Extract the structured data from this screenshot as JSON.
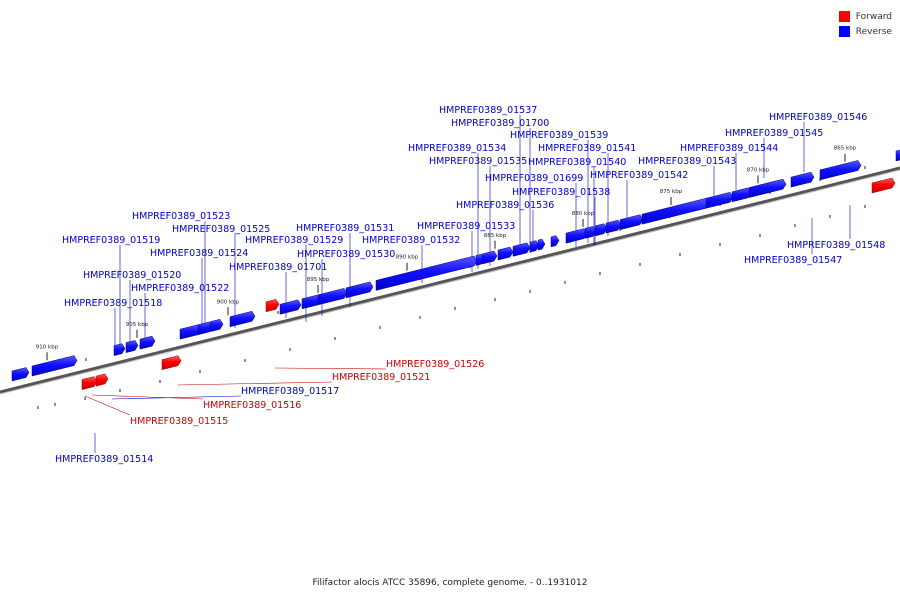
{
  "legend": {
    "forward": {
      "label": "Forward",
      "color": "#ff0000"
    },
    "reverse": {
      "label": "Reverse",
      "color": "#0000ff"
    }
  },
  "caption": "Filifactor alocis ATCC 35896, complete genome. - 0..1931012",
  "axis": {
    "ticks": [
      {
        "label": "910 kbp"
      },
      {
        "label": "905 kbp"
      },
      {
        "label": "900 kbp"
      },
      {
        "label": "895 kbp"
      },
      {
        "label": "890 kbp"
      },
      {
        "label": "885 kbp"
      },
      {
        "label": "880 kbp"
      },
      {
        "label": "875 kbp"
      },
      {
        "label": "870 kbp"
      },
      {
        "label": "865 kbp"
      }
    ]
  },
  "genes": [
    {
      "label": "HMPREF0389_01514",
      "strand": "reverse"
    },
    {
      "label": "HMPREF0389_01515",
      "strand": "forward"
    },
    {
      "label": "HMPREF0389_01516",
      "strand": "forward"
    },
    {
      "label": "HMPREF0389_01517",
      "strand": "reverse"
    },
    {
      "label": "HMPREF0389_01518",
      "strand": "reverse"
    },
    {
      "label": "HMPREF0389_01519",
      "strand": "reverse"
    },
    {
      "label": "HMPREF0389_01520",
      "strand": "reverse"
    },
    {
      "label": "HMPREF0389_01521",
      "strand": "forward"
    },
    {
      "label": "HMPREF0389_01522",
      "strand": "reverse"
    },
    {
      "label": "HMPREF0389_01523",
      "strand": "reverse"
    },
    {
      "label": "HMPREF0389_01524",
      "strand": "reverse"
    },
    {
      "label": "HMPREF0389_01525",
      "strand": "reverse"
    },
    {
      "label": "HMPREF0389_01526",
      "strand": "forward"
    },
    {
      "label": "HMPREF0389_01701",
      "strand": "reverse"
    },
    {
      "label": "HMPREF0389_01529",
      "strand": "reverse"
    },
    {
      "label": "HMPREF0389_01530",
      "strand": "reverse"
    },
    {
      "label": "HMPREF0389_01531",
      "strand": "reverse"
    },
    {
      "label": "HMPREF0389_01532",
      "strand": "reverse"
    },
    {
      "label": "HMPREF0389_01533",
      "strand": "reverse"
    },
    {
      "label": "HMPREF0389_01534",
      "strand": "reverse"
    },
    {
      "label": "HMPREF0389_01535",
      "strand": "reverse"
    },
    {
      "label": "HMPREF0389_01536",
      "strand": "reverse"
    },
    {
      "label": "HMPREF0389_01537",
      "strand": "reverse"
    },
    {
      "label": "HMPREF0389_01700",
      "strand": "reverse"
    },
    {
      "label": "HMPREF0389_01539",
      "strand": "reverse"
    },
    {
      "label": "HMPREF0389_01699",
      "strand": "reverse"
    },
    {
      "label": "HMPREF0389_01538",
      "strand": "reverse"
    },
    {
      "label": "HMPREF0389_01540",
      "strand": "reverse"
    },
    {
      "label": "HMPREF0389_01541",
      "strand": "reverse"
    },
    {
      "label": "HMPREF0389_01542",
      "strand": "reverse"
    },
    {
      "label": "HMPREF0389_01543",
      "strand": "reverse"
    },
    {
      "label": "HMPREF0389_01544",
      "strand": "reverse"
    },
    {
      "label": "HMPREF0389_01545",
      "strand": "reverse"
    },
    {
      "label": "HMPREF0389_01546",
      "strand": "reverse"
    },
    {
      "label": "HMPREF0389_01547",
      "strand": "reverse"
    },
    {
      "label": "HMPREF0389_01548",
      "strand": "reverse"
    }
  ]
}
